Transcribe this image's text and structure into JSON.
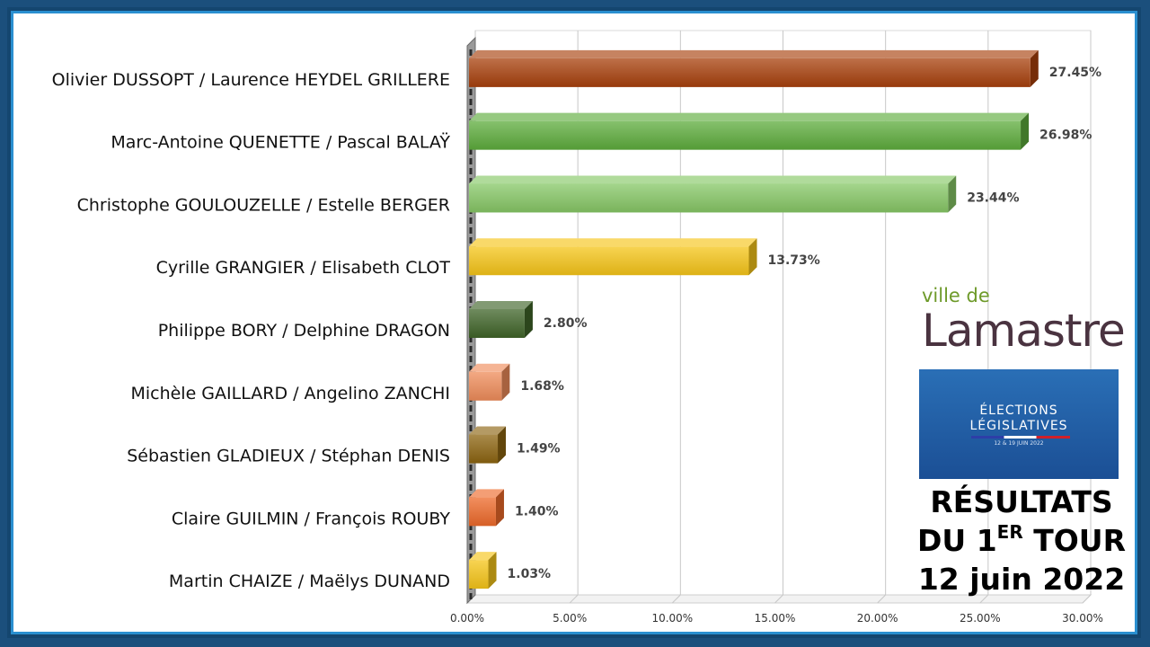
{
  "colors": {
    "background": "#1b4f7c",
    "frame_border": "#2a8fd0",
    "grid": "#c8c8c8"
  },
  "chart_data": {
    "type": "bar",
    "orientation": "horizontal",
    "categories": [
      "Olivier DUSSOPT / Laurence HEYDEL GRILLERE",
      "Marc-Antoine QUENETTE / Pascal BALAŸ",
      "Christophe GOULOUZELLE / Estelle BERGER",
      "Cyrille GRANGIER / Elisabeth CLOT",
      "Philippe BORY / Delphine DRAGON",
      "Michèle GAILLARD / Angelino ZANCHI",
      "Sébastien GLADIEUX / Stéphan DENIS",
      "Claire GUILMIN / François ROUBY",
      "Martin CHAIZE / Maëlys DUNAND"
    ],
    "values": [
      27.45,
      26.98,
      23.44,
      13.73,
      2.8,
      1.68,
      1.49,
      1.4,
      1.03
    ],
    "value_labels": [
      "27.45%",
      "26.98%",
      "23.44%",
      "13.73%",
      "2.80%",
      "1.68%",
      "1.49%",
      "1.40%",
      "1.03%"
    ],
    "bar_colors": [
      "#a8400c",
      "#5dac3c",
      "#86c765",
      "#f5c518",
      "#3f6428",
      "#ef8c5a",
      "#8c6410",
      "#ee6a2a",
      "#f5c518"
    ],
    "x_ticks": [
      0,
      5,
      10,
      15,
      20,
      25,
      30
    ],
    "x_tick_labels": [
      "0.00%",
      "5.00%",
      "10.00%",
      "15.00%",
      "20.00%",
      "25.00%",
      "30.00%"
    ],
    "xlim": [
      0,
      30
    ],
    "grid": true,
    "title": "",
    "xlabel": "",
    "ylabel": ""
  },
  "logo": {
    "small_text": "ville de",
    "big_text": "Lamastre"
  },
  "banner": {
    "line1": "ÉLECTIONS",
    "line2": "LÉGISLATIVES",
    "date": "12 & 19 JUIN 2022"
  },
  "results": {
    "line1": "RÉSULTATS",
    "line2_prefix": "DU 1",
    "line2_sup": "ER",
    "line2_suffix": " TOUR",
    "line3": "12 juin 2022"
  }
}
